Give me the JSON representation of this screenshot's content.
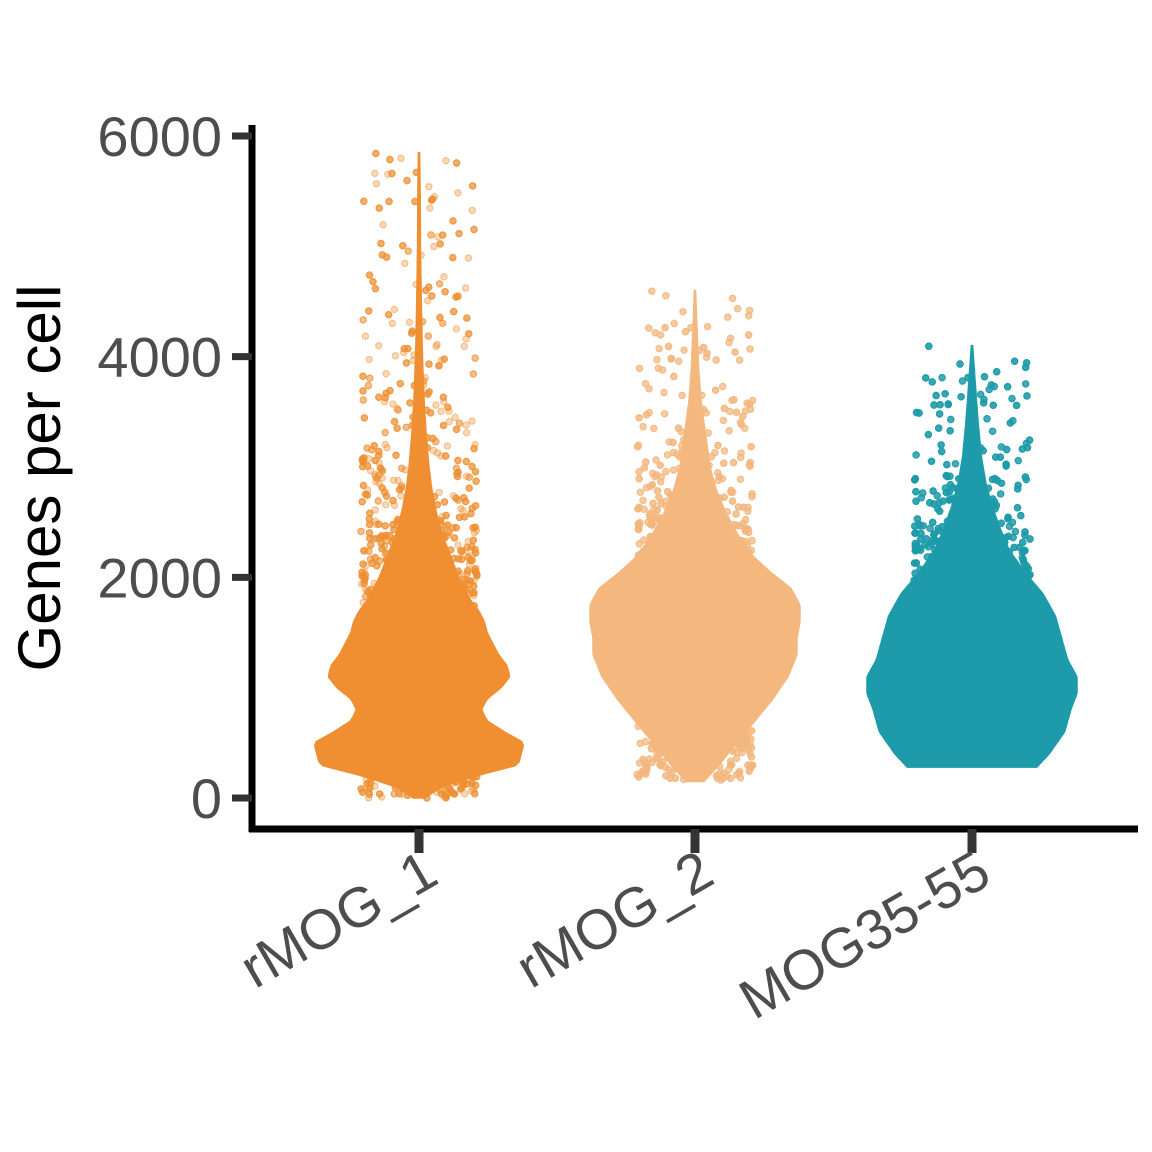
{
  "chart_data": {
    "type": "violin",
    "title": "",
    "xlabel": "",
    "ylabel": "Genes per cell",
    "ylim": [
      -200,
      6200
    ],
    "y_ticks": [
      0,
      2000,
      4000,
      6000
    ],
    "grid": false,
    "legend": "none",
    "categories": [
      "rMOG_1",
      "rMOG_2",
      "MOG35-55"
    ],
    "series": [
      {
        "category": "rMOG_1",
        "color": "#EF8F31",
        "min": 0,
        "max": 5850,
        "density_profile": [
          [
            0,
            0.02
          ],
          [
            100,
            0.08
          ],
          [
            200,
            0.2
          ],
          [
            300,
            0.35
          ],
          [
            400,
            0.36
          ],
          [
            500,
            0.37
          ],
          [
            600,
            0.3
          ],
          [
            700,
            0.24
          ],
          [
            800,
            0.22
          ],
          [
            900,
            0.24
          ],
          [
            1000,
            0.29
          ],
          [
            1100,
            0.32
          ],
          [
            1200,
            0.31
          ],
          [
            1300,
            0.28
          ],
          [
            1400,
            0.26
          ],
          [
            1500,
            0.24
          ],
          [
            1600,
            0.23
          ],
          [
            1700,
            0.21
          ],
          [
            1800,
            0.18
          ],
          [
            1900,
            0.16
          ],
          [
            2000,
            0.14
          ],
          [
            2200,
            0.11
          ],
          [
            2400,
            0.08
          ],
          [
            2600,
            0.06
          ],
          [
            2800,
            0.045
          ],
          [
            3000,
            0.035
          ],
          [
            3300,
            0.025
          ],
          [
            3600,
            0.018
          ],
          [
            4000,
            0.012
          ],
          [
            4500,
            0.008
          ],
          [
            5000,
            0.005
          ],
          [
            5500,
            0.004
          ],
          [
            5850,
            0.002
          ]
        ]
      },
      {
        "category": "rMOG_2",
        "color": "#F4B77E",
        "min": 150,
        "max": 4600,
        "density_profile": [
          [
            150,
            0.03
          ],
          [
            300,
            0.08
          ],
          [
            500,
            0.14
          ],
          [
            700,
            0.2
          ],
          [
            900,
            0.26
          ],
          [
            1100,
            0.31
          ],
          [
            1300,
            0.34
          ],
          [
            1450,
            0.34
          ],
          [
            1600,
            0.35
          ],
          [
            1750,
            0.35
          ],
          [
            1900,
            0.32
          ],
          [
            2050,
            0.25
          ],
          [
            2200,
            0.19
          ],
          [
            2400,
            0.14
          ],
          [
            2600,
            0.1
          ],
          [
            2800,
            0.07
          ],
          [
            3000,
            0.05
          ],
          [
            3300,
            0.035
          ],
          [
            3600,
            0.02
          ],
          [
            3900,
            0.012
          ],
          [
            4300,
            0.006
          ],
          [
            4600,
            0.002
          ]
        ]
      },
      {
        "category": "MOG35-55",
        "color": "#1D9BAA",
        "min": 280,
        "max": 4100,
        "density_profile": [
          [
            280,
            0.21
          ],
          [
            400,
            0.25
          ],
          [
            600,
            0.3
          ],
          [
            800,
            0.32
          ],
          [
            950,
            0.34
          ],
          [
            1100,
            0.34
          ],
          [
            1250,
            0.31
          ],
          [
            1450,
            0.29
          ],
          [
            1650,
            0.27
          ],
          [
            1850,
            0.23
          ],
          [
            2050,
            0.17
          ],
          [
            2250,
            0.12
          ],
          [
            2450,
            0.09
          ],
          [
            2650,
            0.065
          ],
          [
            2850,
            0.045
          ],
          [
            3100,
            0.03
          ],
          [
            3400,
            0.02
          ],
          [
            3700,
            0.012
          ],
          [
            4100,
            0.002
          ]
        ]
      }
    ]
  }
}
